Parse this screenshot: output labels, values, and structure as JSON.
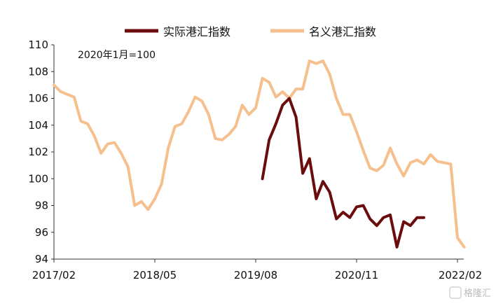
{
  "chart_data": {
    "type": "line",
    "note": "2020年1月=100",
    "ylim": [
      94,
      110
    ],
    "yticks": [
      94,
      96,
      98,
      100,
      102,
      104,
      106,
      108,
      110
    ],
    "xticks": [
      "2017/02",
      "2018/05",
      "2019/08",
      "2020/11",
      "2022/02"
    ],
    "legend_position": "top",
    "grid": false,
    "series": [
      {
        "name": "实际港汇指数",
        "color": "#6b0d0d",
        "points": [
          [
            31,
            100.0
          ],
          [
            32,
            102.9
          ],
          [
            33,
            104.1
          ],
          [
            34,
            105.5
          ],
          [
            35,
            106.0
          ],
          [
            36,
            104.6
          ],
          [
            37,
            100.4
          ],
          [
            38,
            101.5
          ],
          [
            39,
            98.5
          ],
          [
            40,
            99.8
          ],
          [
            41,
            99.0
          ],
          [
            42,
            97.0
          ],
          [
            43,
            97.5
          ],
          [
            44,
            97.1
          ],
          [
            45,
            97.9
          ],
          [
            46,
            98.0
          ],
          [
            47,
            97.0
          ],
          [
            48,
            96.5
          ],
          [
            49,
            97.1
          ],
          [
            50,
            97.3
          ],
          [
            51,
            94.9
          ],
          [
            52,
            96.8
          ],
          [
            53,
            96.5
          ],
          [
            54,
            97.1
          ],
          [
            55,
            97.1
          ]
        ]
      },
      {
        "name": "名义港汇指数",
        "color": "#f5bf8e",
        "points": [
          [
            0,
            107.0
          ],
          [
            1,
            106.5
          ],
          [
            2,
            106.3
          ],
          [
            3,
            106.1
          ],
          [
            4,
            104.3
          ],
          [
            5,
            104.1
          ],
          [
            6,
            103.2
          ],
          [
            7,
            101.9
          ],
          [
            8,
            102.6
          ],
          [
            9,
            102.7
          ],
          [
            10,
            101.9
          ],
          [
            11,
            100.9
          ],
          [
            12,
            98.0
          ],
          [
            13,
            98.3
          ],
          [
            14,
            97.7
          ],
          [
            15,
            98.5
          ],
          [
            16,
            99.6
          ],
          [
            17,
            102.3
          ],
          [
            18,
            103.9
          ],
          [
            19,
            104.1
          ],
          [
            20,
            105.0
          ],
          [
            21,
            106.1
          ],
          [
            22,
            105.8
          ],
          [
            23,
            104.8
          ],
          [
            24,
            103.0
          ],
          [
            25,
            102.9
          ],
          [
            26,
            103.3
          ],
          [
            27,
            103.9
          ],
          [
            28,
            105.5
          ],
          [
            29,
            104.8
          ],
          [
            30,
            105.3
          ],
          [
            31,
            107.5
          ],
          [
            32,
            107.2
          ],
          [
            33,
            106.1
          ],
          [
            34,
            106.5
          ],
          [
            35,
            106.0
          ],
          [
            36,
            106.7
          ],
          [
            37,
            106.7
          ],
          [
            38,
            108.8
          ],
          [
            39,
            108.6
          ],
          [
            40,
            108.8
          ],
          [
            41,
            107.8
          ],
          [
            42,
            106.0
          ],
          [
            43,
            104.8
          ],
          [
            44,
            104.8
          ],
          [
            45,
            103.5
          ],
          [
            46,
            102.1
          ],
          [
            47,
            100.8
          ],
          [
            48,
            100.6
          ],
          [
            49,
            101.0
          ],
          [
            50,
            102.3
          ],
          [
            51,
            101.1
          ],
          [
            52,
            100.2
          ],
          [
            53,
            101.2
          ],
          [
            54,
            101.4
          ],
          [
            55,
            101.1
          ],
          [
            56,
            101.8
          ],
          [
            57,
            101.3
          ],
          [
            58,
            101.2
          ],
          [
            59,
            101.1
          ],
          [
            60,
            95.6
          ],
          [
            61,
            94.9
          ]
        ]
      }
    ]
  },
  "watermark": "格隆汇"
}
